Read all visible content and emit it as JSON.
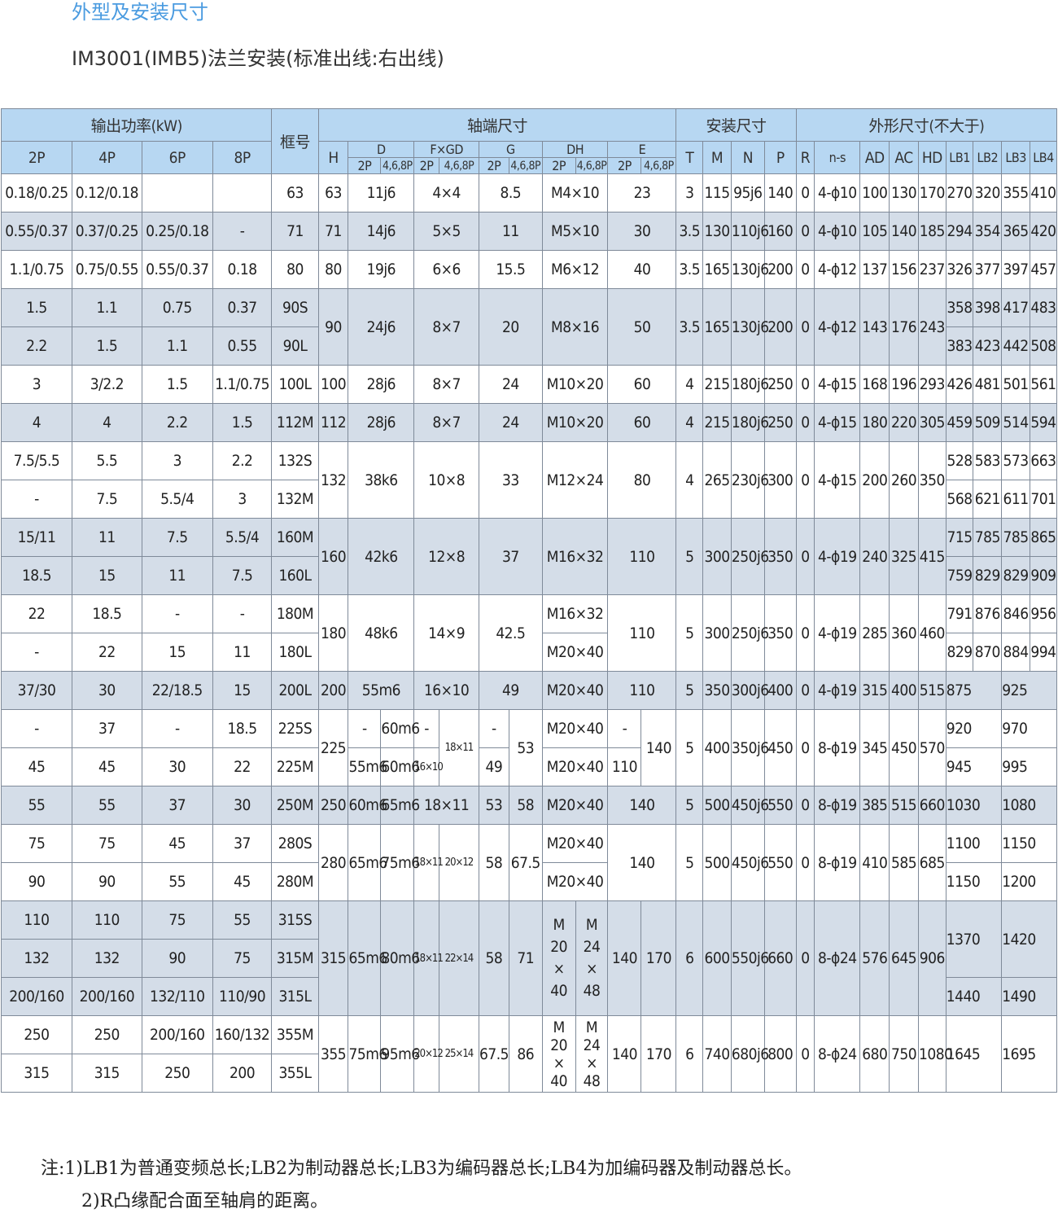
{
  "title": "外型及安装尺寸",
  "subtitle": "IM3001(IMB5)法兰安装(标准出线:右出线)",
  "header": {
    "power": "输出功率(kW)",
    "frame": "框号",
    "shaft": "轴端尺寸",
    "mount": "安装尺寸",
    "outline": "外形尺寸(不大于)",
    "p2": "2P",
    "p4": "4P",
    "p6": "6P",
    "p8": "8P",
    "H": "H",
    "D": "D",
    "FxGD": "F×GD",
    "G": "G",
    "DH": "DH",
    "E": "E",
    "sub2P": "2P",
    "sub468P": "4,6,8P",
    "T": "T",
    "M": "M",
    "N": "N",
    "P": "P",
    "R": "R",
    "ns": "n-s",
    "AD": "AD",
    "AC": "AC",
    "HD": "HD",
    "LB1": "LB1",
    "LB2": "LB2",
    "LB3": "LB3",
    "LB4": "LB4"
  },
  "rows": {
    "r63": {
      "p2": "0.18/0.25",
      "p4": "0.12/0.18",
      "p6": "",
      "p8": "",
      "frame": "63",
      "H": "63",
      "D": "11j6",
      "FGD": "4×4",
      "G": "8.5",
      "DH": "M4×10",
      "E": "23",
      "T": "3",
      "M": "115",
      "N": "95j6",
      "P": "140",
      "R": "0",
      "ns": "4-ϕ10",
      "AD": "100",
      "AC": "130",
      "HD": "170",
      "LB1": "270",
      "LB2": "320",
      "LB3": "355",
      "LB4": "410"
    },
    "r71": {
      "p2": "0.55/0.37",
      "p4": "0.37/0.25",
      "p6": "0.25/0.18",
      "p8": "-",
      "frame": "71",
      "H": "71",
      "D": "14j6",
      "FGD": "5×5",
      "G": "11",
      "DH": "M5×10",
      "E": "30",
      "T": "3.5",
      "M": "130",
      "N": "110j6",
      "P": "160",
      "R": "0",
      "ns": "4-ϕ10",
      "AD": "105",
      "AC": "140",
      "HD": "185",
      "LB1": "294",
      "LB2": "354",
      "LB3": "365",
      "LB4": "420"
    },
    "r80": {
      "p2": "1.1/0.75",
      "p4": "0.75/0.55",
      "p6": "0.55/0.37",
      "p8": "0.18",
      "frame": "80",
      "H": "80",
      "D": "19j6",
      "FGD": "6×6",
      "G": "15.5",
      "DH": "M6×12",
      "E": "40",
      "T": "3.5",
      "M": "165",
      "N": "130j6",
      "P": "200",
      "R": "0",
      "ns": "4-ϕ12",
      "AD": "137",
      "AC": "156",
      "HD": "237",
      "LB1": "326",
      "LB2": "377",
      "LB3": "397",
      "LB4": "457"
    },
    "r90": {
      "a": {
        "p2": "1.5",
        "p4": "1.1",
        "p6": "0.75",
        "p8": "0.37",
        "frame": "90S",
        "LB1": "358",
        "LB2": "398",
        "LB3": "417",
        "LB4": "483"
      },
      "b": {
        "p2": "2.2",
        "p4": "1.5",
        "p6": "1.1",
        "p8": "0.55",
        "frame": "90L",
        "LB1": "383",
        "LB2": "423",
        "LB3": "442",
        "LB4": "508"
      },
      "H": "90",
      "D": "24j6",
      "FGD": "8×7",
      "G": "20",
      "DH": "M8×16",
      "E": "50",
      "T": "3.5",
      "M": "165",
      "N": "130j6",
      "P": "200",
      "R": "0",
      "ns": "4-ϕ12",
      "AD": "143",
      "AC": "176",
      "HD": "243"
    },
    "r100": {
      "p2": "3",
      "p4": "3/2.2",
      "p6": "1.5",
      "p8": "1.1/0.75",
      "frame": "100L",
      "H": "100",
      "D": "28j6",
      "FGD": "8×7",
      "G": "24",
      "DH": "M10×20",
      "E": "60",
      "T": "4",
      "M": "215",
      "N": "180j6",
      "P": "250",
      "R": "0",
      "ns": "4-ϕ15",
      "AD": "168",
      "AC": "196",
      "HD": "293",
      "LB1": "426",
      "LB2": "481",
      "LB3": "501",
      "LB4": "561"
    },
    "r112": {
      "p2": "4",
      "p4": "4",
      "p6": "2.2",
      "p8": "1.5",
      "frame": "112M",
      "H": "112",
      "D": "28j6",
      "FGD": "8×7",
      "G": "24",
      "DH": "M10×20",
      "E": "60",
      "T": "4",
      "M": "215",
      "N": "180j6",
      "P": "250",
      "R": "0",
      "ns": "4-ϕ15",
      "AD": "180",
      "AC": "220",
      "HD": "305",
      "LB1": "459",
      "LB2": "509",
      "LB3": "514",
      "LB4": "594"
    },
    "r132": {
      "a": {
        "p2": "7.5/5.5",
        "p4": "5.5",
        "p6": "3",
        "p8": "2.2",
        "frame": "132S",
        "LB1": "528",
        "LB2": "583",
        "LB3": "573",
        "LB4": "663"
      },
      "b": {
        "p2": "-",
        "p4": "7.5",
        "p6": "5.5/4",
        "p8": "3",
        "frame": "132M",
        "LB1": "568",
        "LB2": "621",
        "LB3": "611",
        "LB4": "701"
      },
      "H": "132",
      "D": "38k6",
      "FGD": "10×8",
      "G": "33",
      "DH": "M12×24",
      "E": "80",
      "T": "4",
      "M": "265",
      "N": "230j6",
      "P": "300",
      "R": "0",
      "ns": "4-ϕ15",
      "AD": "200",
      "AC": "260",
      "HD": "350"
    },
    "r160": {
      "a": {
        "p2": "15/11",
        "p4": "11",
        "p6": "7.5",
        "p8": "5.5/4",
        "frame": "160M",
        "LB1": "715",
        "LB2": "785",
        "LB3": "785",
        "LB4": "865"
      },
      "b": {
        "p2": "18.5",
        "p4": "15",
        "p6": "11",
        "p8": "7.5",
        "frame": "160L",
        "LB1": "759",
        "LB2": "829",
        "LB3": "829",
        "LB4": "909"
      },
      "H": "160",
      "D": "42k6",
      "FGD": "12×8",
      "G": "37",
      "DH": "M16×32",
      "E": "110",
      "T": "5",
      "M": "300",
      "N": "250j6",
      "P": "350",
      "R": "0",
      "ns": "4-ϕ19",
      "AD": "240",
      "AC": "325",
      "HD": "415"
    },
    "r180": {
      "a": {
        "p2": "22",
        "p4": "18.5",
        "p6": "-",
        "p8": "-",
        "frame": "180M",
        "DH": "M16×32",
        "LB1": "791",
        "LB2": "876",
        "LB3": "846",
        "LB4": "956"
      },
      "b": {
        "p2": "-",
        "p4": "22",
        "p6": "15",
        "p8": "11",
        "frame": "180L",
        "DH": "M20×40",
        "LB1": "829",
        "LB2": "870",
        "LB3": "884",
        "LB4": "994"
      },
      "H": "180",
      "D": "48k6",
      "FGD": "14×9",
      "G": "42.5",
      "E": "110",
      "T": "5",
      "M": "300",
      "N": "250j6",
      "P": "350",
      "R": "0",
      "ns": "4-ϕ19",
      "AD": "285",
      "AC": "360",
      "HD": "460"
    },
    "r200": {
      "p2": "37/30",
      "p4": "30",
      "p6": "22/18.5",
      "p8": "15",
      "frame": "200L",
      "H": "200",
      "D": "55m6",
      "FGD": "16×10",
      "G": "49",
      "DH": "M20×40",
      "E": "110",
      "T": "5",
      "M": "350",
      "N": "300j6",
      "P": "400",
      "R": "0",
      "ns": "4-ϕ19",
      "AD": "315",
      "AC": "400",
      "HD": "515",
      "LB1": "875",
      "LB3": "925"
    },
    "r225": {
      "a": {
        "p2": "-",
        "p4": "37",
        "p6": "-",
        "p8": "18.5",
        "frame": "225S",
        "D2": "-",
        "D4": "60m6",
        "F2": "-",
        "G2": "-",
        "DH": "M20×40",
        "E2": "-",
        "LB1": "920",
        "LB3": "970"
      },
      "b": {
        "p2": "45",
        "p4": "45",
        "p6": "30",
        "p8": "22",
        "frame": "225M",
        "D2": "55m6",
        "D4": "60m6",
        "F2": "16×10",
        "G2": "49",
        "DH": "M20×40",
        "E2": "110",
        "LB1": "945",
        "LB3": "995"
      },
      "H": "225",
      "F4": "18×11",
      "G4": "53",
      "E4": "140",
      "T": "5",
      "M": "400",
      "N": "350j6",
      "P": "450",
      "R": "0",
      "ns": "8-ϕ19",
      "AD": "345",
      "AC": "450",
      "HD": "570"
    },
    "r250": {
      "p2": "55",
      "p4": "55",
      "p6": "37",
      "p8": "30",
      "frame": "250M",
      "H": "250",
      "D2": "60m6",
      "D4": "65m6",
      "FGD": "18×11",
      "G2": "53",
      "G4": "58",
      "DH": "M20×40",
      "E": "140",
      "T": "5",
      "M": "500",
      "N": "450j6",
      "P": "550",
      "R": "0",
      "ns": "8-ϕ19",
      "AD": "385",
      "AC": "515",
      "HD": "660",
      "LB1": "1030",
      "LB3": "1080"
    },
    "r280": {
      "a": {
        "p2": "75",
        "p4": "75",
        "p6": "45",
        "p8": "37",
        "frame": "280S",
        "DH": "M20×40",
        "LB1": "1100",
        "LB3": "1150"
      },
      "b": {
        "p2": "90",
        "p4": "90",
        "p6": "55",
        "p8": "45",
        "frame": "280M",
        "DH": "M20×40",
        "LB1": "1150",
        "LB3": "1200"
      },
      "H": "280",
      "D2": "65m6",
      "D4": "75m6",
      "F2": "18×11",
      "F4": "20×12",
      "G2": "58",
      "G4": "67.5",
      "E": "140",
      "T": "5",
      "M": "500",
      "N": "450j6",
      "P": "550",
      "R": "0",
      "ns": "8-ϕ19",
      "AD": "410",
      "AC": "585",
      "HD": "685"
    },
    "r315": {
      "a": {
        "p2": "110",
        "p4": "110",
        "p6": "75",
        "p8": "55",
        "frame": "315S"
      },
      "b": {
        "p2": "132",
        "p4": "132",
        "p6": "90",
        "p8": "75",
        "frame": "315M"
      },
      "c": {
        "p2": "200/160",
        "p4": "200/160",
        "p6": "132/110",
        "p8": "110/90",
        "frame": "315L"
      },
      "H": "315",
      "D2": "65m6",
      "D4": "80m6",
      "F2": "18×11",
      "F4": "22×14",
      "G2": "58",
      "G4": "71",
      "DH2a": "M",
      "DH2b": "20",
      "DH2c": "×",
      "DH2d": "40",
      "DH4a": "M",
      "DH4b": "24",
      "DH4c": "×",
      "DH4d": "48",
      "E2": "140",
      "E4": "170",
      "T": "6",
      "M": "600",
      "N": "550j6",
      "P": "660",
      "R": "0",
      "ns": "8-ϕ24",
      "AD": "576",
      "AC": "645",
      "HD": "906",
      "LB1a": "1370",
      "LB3a": "1420",
      "LB1b": "1440",
      "LB3b": "1490"
    },
    "r355": {
      "a": {
        "p2": "250",
        "p4": "250",
        "p6": "200/160",
        "p8": "160/132",
        "frame": "355M"
      },
      "b": {
        "p2": "315",
        "p4": "315",
        "p6": "250",
        "p8": "200",
        "frame": "355L"
      },
      "H": "355",
      "D2": "75m6",
      "D4": "95m6",
      "F2": "20×12",
      "F4": "25×14",
      "G2": "67.5",
      "G4": "86",
      "DH2a": "M",
      "DH2b": "20",
      "DH2c": "×",
      "DH2d": "40",
      "DH4a": "M",
      "DH4b": "24",
      "DH4c": "×",
      "DH4d": "48",
      "E2": "140",
      "E4": "170",
      "T": "6",
      "M": "740",
      "N": "680j6",
      "P": "800",
      "R": "0",
      "ns": "8-ϕ24",
      "AD": "680",
      "AC": "750",
      "HD": "1080",
      "LB1": "1645",
      "LB3": "1695"
    }
  },
  "notes": {
    "n1": "注:1)LB1为普通变频总长;LB2为制动器总长;LB3为编码器总长;LB4为加编码器及制动器总长。",
    "n2": "2)R凸缘配合面至轴肩的距离。"
  },
  "colors": {
    "header_bg": "#b7d7f2",
    "row_shade": "#d4dde8",
    "title": "#4a9be0",
    "border": "#7f8a99"
  }
}
